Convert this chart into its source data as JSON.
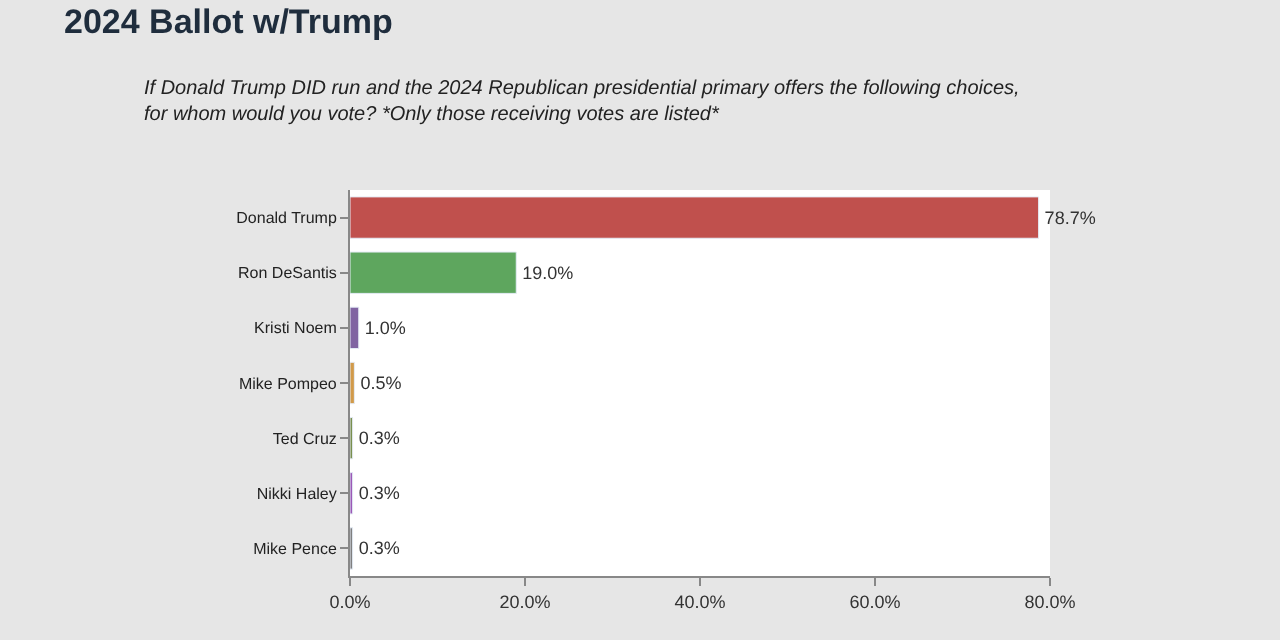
{
  "chart_data": {
    "type": "bar",
    "orientation": "horizontal",
    "title": "2024 Ballot w/Trump",
    "subtitle": "If Donald Trump DID run and the 2024 Republican presidential primary offers the following choices, for whom would you vote? *Only those receiving votes are listed*",
    "categories": [
      "Donald Trump",
      "Ron DeSantis",
      "Kristi Noem",
      "Mike Pompeo",
      "Ted Cruz",
      "Nikki Haley",
      "Mike Pence"
    ],
    "values": [
      78.7,
      19.0,
      1.0,
      0.5,
      0.3,
      0.3,
      0.3
    ],
    "value_labels": [
      "78.7%",
      "19.0%",
      "1.0%",
      "0.5%",
      "0.3%",
      "0.3%",
      "0.3%"
    ],
    "colors": [
      "#c0504d",
      "#5ea65e",
      "#8064a2",
      "#d19a4a",
      "#7a8f4e",
      "#9b59b6",
      "#7f7f7f"
    ],
    "xlim": [
      0,
      80
    ],
    "xticks": [
      {
        "value": 0,
        "label": "0.0%"
      },
      {
        "value": 20,
        "label": "20.0%"
      },
      {
        "value": 40,
        "label": "40.0%"
      },
      {
        "value": 60,
        "label": "60.0%"
      },
      {
        "value": 80,
        "label": "80.0%"
      }
    ],
    "grid": false,
    "legend": false
  }
}
